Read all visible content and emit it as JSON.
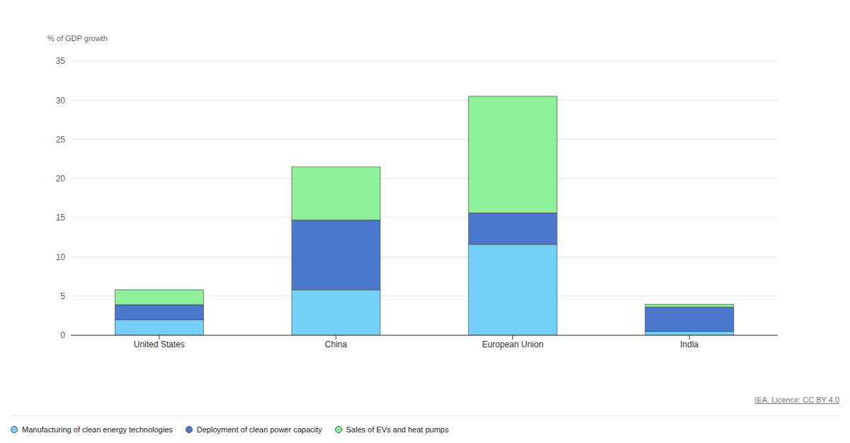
{
  "chart_data": {
    "type": "bar",
    "stacked": true,
    "y_label": "% of GDP growth",
    "source": "IEA. Licence: CC BY 4.0",
    "categories": [
      "United States",
      "China",
      "European Union",
      "India"
    ],
    "series": [
      {
        "name": "Manufacturing of clean energy technologies",
        "color": "#75d0f8",
        "values": [
          2.0,
          5.8,
          11.6,
          0.5
        ]
      },
      {
        "name": "Deployment of clean power capacity",
        "color": "#4a78cd",
        "values": [
          1.9,
          8.9,
          4.0,
          3.1
        ]
      },
      {
        "name": "Sales of EVs and heat pumps",
        "color": "#8ff09a",
        "values": [
          1.9,
          6.8,
          14.9,
          0.35
        ]
      }
    ],
    "ylim": [
      0,
      35
    ],
    "yticks": [
      0,
      5,
      10,
      15,
      20,
      25,
      30,
      35
    ],
    "grid": true,
    "legend": "bottom"
  }
}
